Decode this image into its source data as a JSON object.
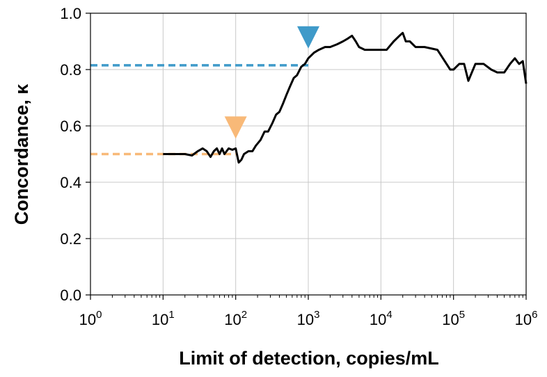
{
  "chart_data": {
    "type": "line",
    "xlabel": "Limit of detection, copies/mL",
    "ylabel": "Concordance, κ",
    "x_scale": "log10",
    "xlim": [
      1,
      1000000
    ],
    "ylim": [
      0.0,
      1.0
    ],
    "grid": true,
    "x_ticks": [
      {
        "base": "10",
        "exp": "0"
      },
      {
        "base": "10",
        "exp": "1"
      },
      {
        "base": "10",
        "exp": "2"
      },
      {
        "base": "10",
        "exp": "3"
      },
      {
        "base": "10",
        "exp": "4"
      },
      {
        "base": "10",
        "exp": "5"
      },
      {
        "base": "10",
        "exp": "6"
      }
    ],
    "y_ticks": [
      "0.0",
      "0.2",
      "0.4",
      "0.6",
      "0.8",
      "1.0"
    ],
    "series": [
      {
        "color": "#000000",
        "x": [
          10,
          15,
          20,
          25,
          30,
          35,
          40,
          45,
          50,
          55,
          60,
          65,
          70,
          75,
          80,
          90,
          100,
          110,
          120,
          130,
          150,
          170,
          190,
          220,
          250,
          280,
          320,
          360,
          400,
          450,
          500,
          560,
          630,
          700,
          800,
          900,
          1000,
          1200,
          1400,
          1700,
          2000,
          2500,
          3000,
          3500,
          4000,
          4500,
          5000,
          6000,
          7000,
          8000,
          10000,
          12000,
          15000,
          18000,
          20000,
          22000,
          25000,
          30000,
          40000,
          60000,
          90000,
          100000,
          120000,
          140000,
          160000,
          200000,
          260000,
          330000,
          400000,
          500000,
          600000,
          700000,
          800000,
          900000,
          1000000
        ],
        "y": [
          0.5,
          0.5,
          0.5,
          0.495,
          0.51,
          0.52,
          0.51,
          0.49,
          0.51,
          0.52,
          0.5,
          0.52,
          0.5,
          0.51,
          0.52,
          0.515,
          0.52,
          0.47,
          0.48,
          0.5,
          0.51,
          0.51,
          0.53,
          0.55,
          0.58,
          0.58,
          0.61,
          0.64,
          0.65,
          0.68,
          0.71,
          0.74,
          0.77,
          0.78,
          0.81,
          0.82,
          0.84,
          0.86,
          0.87,
          0.88,
          0.88,
          0.89,
          0.9,
          0.91,
          0.92,
          0.9,
          0.88,
          0.87,
          0.87,
          0.87,
          0.87,
          0.87,
          0.9,
          0.92,
          0.93,
          0.9,
          0.9,
          0.88,
          0.88,
          0.87,
          0.8,
          0.8,
          0.82,
          0.82,
          0.76,
          0.82,
          0.82,
          0.8,
          0.79,
          0.79,
          0.82,
          0.84,
          0.82,
          0.83,
          0.75
        ]
      }
    ],
    "reference_lines": [
      {
        "y": 0.5,
        "x_end": 100,
        "color": "#f8b978",
        "marker_x": 100
      },
      {
        "y": 0.815,
        "x_end": 1000,
        "color": "#3f9ac9",
        "marker_x": 1000
      }
    ]
  }
}
